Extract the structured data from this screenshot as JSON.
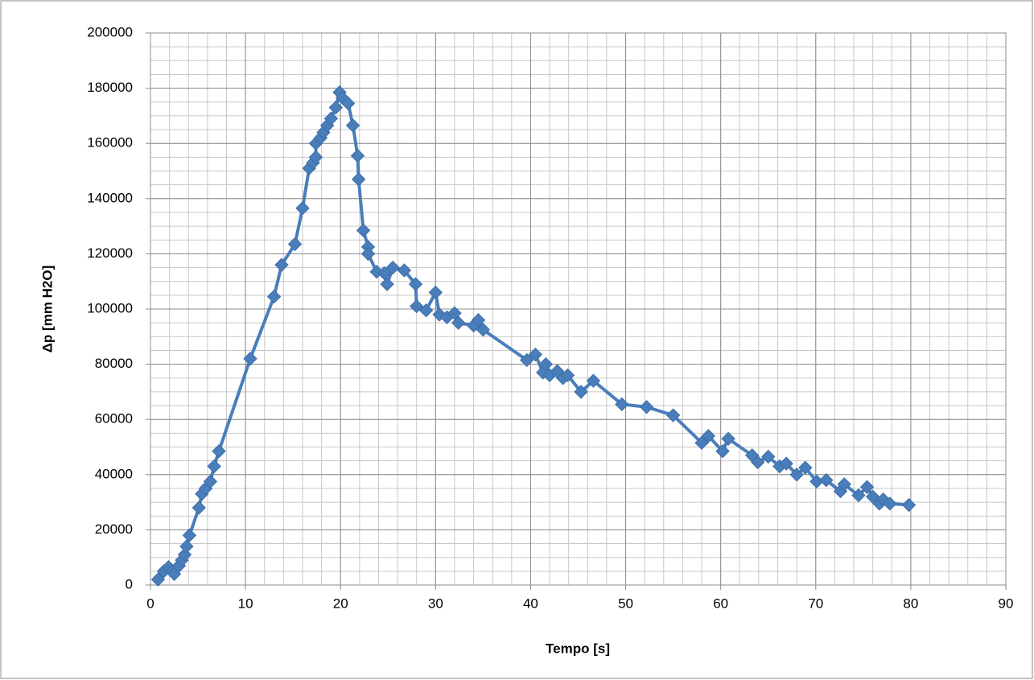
{
  "chart_data": {
    "type": "line",
    "x_label": "Tempo [s]",
    "y_label": "Δp [mm H2O]",
    "x": [
      0.8,
      1.4,
      1.9,
      2.3,
      2.5,
      3.0,
      3.3,
      3.6,
      3.8,
      4.1,
      5.1,
      5.4,
      5.8,
      6.3,
      6.7,
      7.2,
      10.5,
      13.0,
      13.8,
      15.2,
      16.0,
      16.7,
      17.1,
      17.4,
      17.4,
      17.9,
      18.2,
      18.6,
      19.0,
      19.5,
      19.9,
      20.2,
      20.8,
      21.3,
      21.8,
      21.9,
      22.4,
      22.9,
      22.9,
      23.8,
      24.6,
      24.9,
      25.5,
      26.7,
      27.9,
      28.0,
      29.0,
      30.0,
      30.4,
      31.2,
      32.0,
      32.4,
      34.0,
      34.5,
      35.0,
      39.6,
      40.5,
      41.3,
      41.6,
      42.0,
      42.8,
      43.4,
      43.9,
      45.3,
      46.6,
      49.6,
      52.2,
      55.0,
      58.0,
      58.7,
      60.2,
      60.8,
      63.3,
      63.9,
      65.0,
      66.2,
      66.9,
      68.0,
      68.9,
      70.1,
      71.1,
      72.6,
      73.0,
      74.5,
      75.4,
      76.0,
      76.7,
      77.1,
      77.8,
      79.8
    ],
    "values": [
      2000,
      5000,
      6500,
      5000,
      4000,
      7000,
      9000,
      11000,
      14000,
      18000,
      28000,
      33000,
      35000,
      37500,
      43000,
      48500,
      82000,
      104500,
      116000,
      123500,
      136500,
      151000,
      153000,
      155000,
      160000,
      162000,
      164000,
      166500,
      169000,
      173000,
      178500,
      176500,
      174500,
      166500,
      155500,
      147000,
      128500,
      122500,
      120000,
      113500,
      113000,
      109000,
      115000,
      114000,
      109000,
      101000,
      99500,
      106000,
      98000,
      97000,
      98500,
      95000,
      94000,
      96000,
      92500,
      81500,
      83500,
      77000,
      80000,
      76000,
      77500,
      75000,
      76000,
      70000,
      74000,
      65500,
      64500,
      61500,
      51500,
      54000,
      48500,
      53000,
      47000,
      44500,
      46500,
      43000,
      44000,
      40000,
      42500,
      37500,
      38000,
      34000,
      36500,
      32500,
      35500,
      32000,
      29500,
      31000,
      29500,
      29000
    ],
    "color": "#4a7ebb",
    "xlim": [
      0,
      90
    ],
    "xticks": [
      0,
      10,
      20,
      30,
      40,
      50,
      60,
      70,
      80,
      90
    ],
    "ylim": [
      0,
      200000
    ],
    "yticks": [
      0,
      20000,
      40000,
      60000,
      80000,
      100000,
      120000,
      140000,
      160000,
      180000,
      200000
    ],
    "grid": true,
    "minor_grid": {
      "x": 2,
      "y": 5000
    }
  }
}
